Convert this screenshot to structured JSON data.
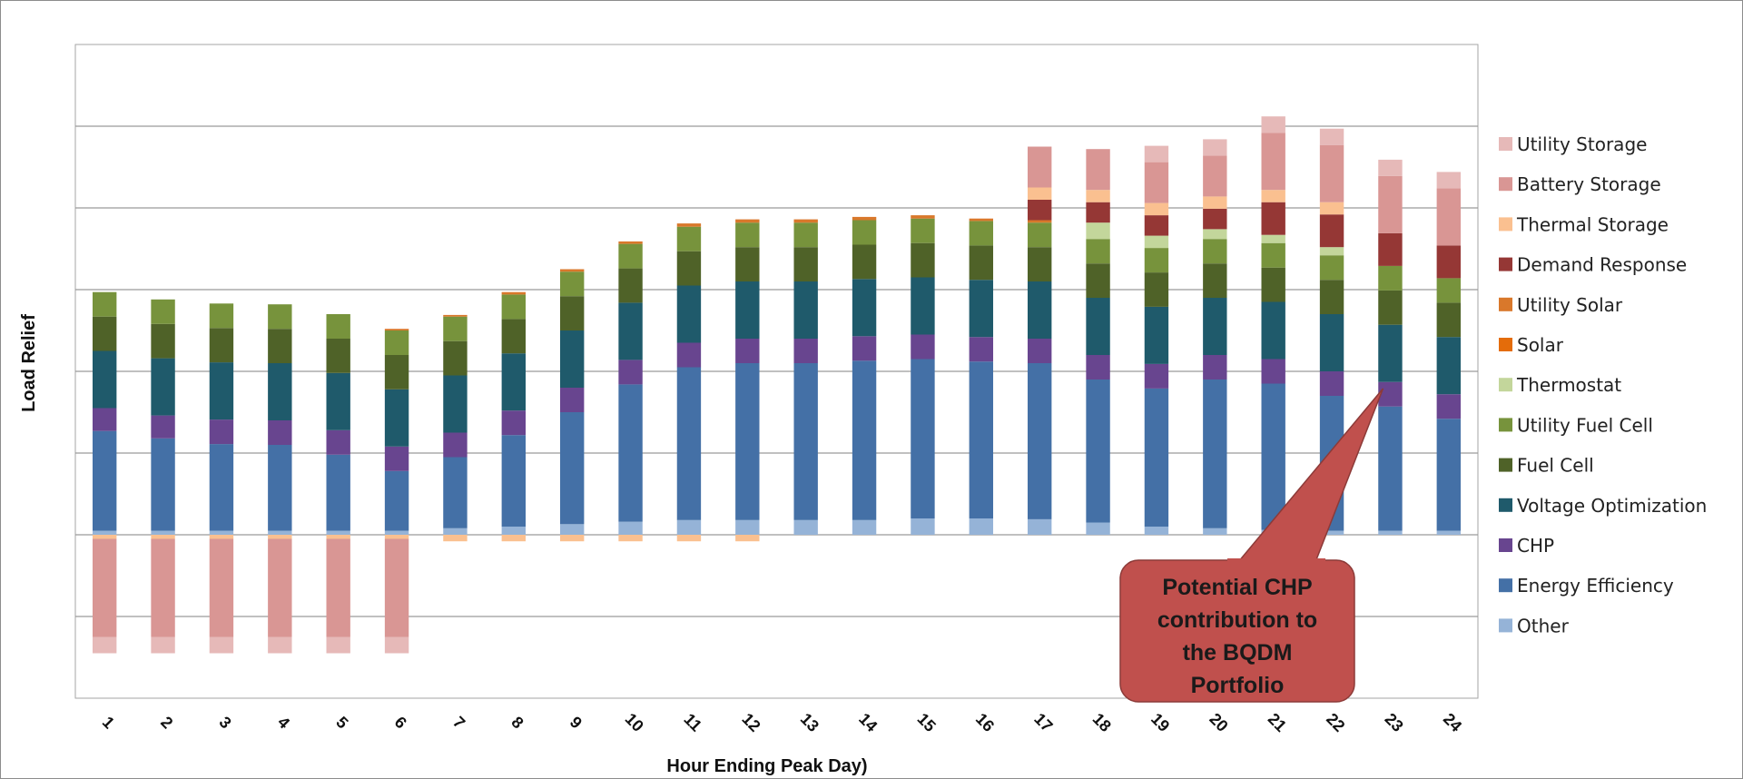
{
  "chart_data": {
    "type": "bar",
    "stacked": true,
    "title": "",
    "xlabel": "Hour Ending Peak Day)",
    "ylabel": "Load Relief",
    "y_tick_labels_shown": false,
    "ylim": [
      -2,
      6
    ],
    "grid": true,
    "legend_position": "right",
    "categories": [
      "1",
      "2",
      "3",
      "4",
      "5",
      "6",
      "7",
      "8",
      "9",
      "10",
      "11",
      "12",
      "13",
      "14",
      "15",
      "16",
      "17",
      "18",
      "19",
      "20",
      "21",
      "22",
      "23",
      "24"
    ],
    "series": [
      {
        "name": "Other",
        "color": "#95b3d7",
        "values": [
          0.05,
          0.05,
          0.05,
          0.05,
          0.05,
          0.05,
          0.08,
          0.1,
          0.13,
          0.16,
          0.18,
          0.18,
          0.18,
          0.18,
          0.2,
          0.2,
          0.19,
          0.15,
          0.1,
          0.08,
          0.06,
          0.05,
          0.05,
          0.05
        ]
      },
      {
        "name": "Energy Efficiency",
        "color": "#4470a6",
        "values": [
          1.22,
          1.13,
          1.06,
          1.05,
          0.93,
          0.73,
          0.87,
          1.12,
          1.37,
          1.68,
          1.87,
          1.92,
          1.92,
          1.95,
          1.95,
          1.92,
          1.91,
          1.75,
          1.69,
          1.82,
          1.79,
          1.65,
          1.52,
          1.37
        ]
      },
      {
        "name": "CHP",
        "color": "#68458f",
        "values": [
          0.28,
          0.28,
          0.3,
          0.3,
          0.3,
          0.3,
          0.3,
          0.3,
          0.3,
          0.3,
          0.3,
          0.3,
          0.3,
          0.3,
          0.3,
          0.3,
          0.3,
          0.3,
          0.3,
          0.3,
          0.3,
          0.3,
          0.3,
          0.3
        ]
      },
      {
        "name": "Voltage Optimization",
        "color": "#1f5a6b",
        "values": [
          0.7,
          0.7,
          0.7,
          0.7,
          0.7,
          0.7,
          0.7,
          0.7,
          0.7,
          0.7,
          0.7,
          0.7,
          0.7,
          0.7,
          0.7,
          0.7,
          0.7,
          0.7,
          0.7,
          0.7,
          0.7,
          0.7,
          0.7,
          0.7
        ]
      },
      {
        "name": "Fuel Cell",
        "color": "#4f6228",
        "values": [
          0.42,
          0.42,
          0.42,
          0.42,
          0.42,
          0.42,
          0.42,
          0.42,
          0.42,
          0.42,
          0.42,
          0.42,
          0.42,
          0.42,
          0.42,
          0.42,
          0.42,
          0.42,
          0.42,
          0.42,
          0.42,
          0.42,
          0.42,
          0.42
        ]
      },
      {
        "name": "Utility Fuel Cell",
        "color": "#77933c",
        "values": [
          0.3,
          0.3,
          0.3,
          0.3,
          0.3,
          0.3,
          0.3,
          0.3,
          0.3,
          0.3,
          0.3,
          0.3,
          0.3,
          0.3,
          0.3,
          0.3,
          0.3,
          0.3,
          0.3,
          0.3,
          0.3,
          0.3,
          0.3,
          0.3
        ]
      },
      {
        "name": "Thermostat",
        "color": "#c3d69b",
        "values": [
          0,
          0,
          0,
          0,
          0,
          0,
          0,
          0,
          0,
          0,
          0,
          0,
          0,
          0,
          0,
          0,
          0,
          0.2,
          0.15,
          0.12,
          0.1,
          0.1,
          0,
          0
        ]
      },
      {
        "name": "Solar",
        "color": "#e46c0a",
        "values": [
          0,
          0,
          0,
          0,
          0,
          0,
          0,
          0,
          0,
          0,
          0,
          0,
          0,
          0,
          0,
          0,
          0,
          0,
          0,
          0,
          0,
          0,
          0,
          0
        ]
      },
      {
        "name": "Utility Solar",
        "color": "#d9782b",
        "values": [
          0,
          0,
          0,
          0,
          0,
          0.02,
          0.02,
          0.03,
          0.03,
          0.03,
          0.04,
          0.04,
          0.04,
          0.04,
          0.04,
          0.03,
          0.03,
          0,
          0,
          0,
          0,
          0,
          0,
          0
        ]
      },
      {
        "name": "Demand Response",
        "color": "#953735",
        "values": [
          0,
          0,
          0,
          0,
          0,
          0,
          0,
          0,
          0,
          0,
          0,
          0,
          0,
          0,
          0,
          0,
          0.25,
          0.25,
          0.25,
          0.25,
          0.4,
          0.4,
          0.4,
          0.4
        ]
      },
      {
        "name": "Thermal Storage",
        "color": "#fac090",
        "values": [
          -0.05,
          -0.05,
          -0.05,
          -0.05,
          -0.05,
          -0.05,
          -0.08,
          -0.08,
          -0.08,
          -0.08,
          -0.08,
          -0.08,
          0,
          0,
          0,
          0,
          0.15,
          0.15,
          0.15,
          0.15,
          0.15,
          0.15,
          0,
          0
        ]
      },
      {
        "name": "Battery Storage",
        "color": "#d99694",
        "values": [
          -1.2,
          -1.2,
          -1.2,
          -1.2,
          -1.2,
          -1.2,
          0,
          0,
          0,
          0,
          0,
          0,
          0,
          0,
          0,
          0,
          0.5,
          0.5,
          0.5,
          0.5,
          0.7,
          0.7,
          0.7,
          0.7
        ]
      },
      {
        "name": "Utility Storage",
        "color": "#e6b9b8",
        "values": [
          -0.2,
          -0.2,
          -0.2,
          -0.2,
          -0.2,
          -0.2,
          0,
          0,
          0,
          0,
          0,
          0,
          0,
          0,
          0,
          0,
          0,
          0,
          0.2,
          0.2,
          0.2,
          0.2,
          0.2,
          0.2
        ]
      }
    ],
    "legend_order": [
      "Utility Storage",
      "Battery Storage",
      "Thermal Storage",
      "Demand Response",
      "Utility Solar",
      "Solar",
      "Thermostat",
      "Utility Fuel Cell",
      "Fuel Cell",
      "Voltage Optimization",
      "CHP",
      "Energy Efficiency",
      "Other"
    ],
    "annotation": {
      "lines": [
        "Potential CHP",
        "contribution to",
        "the BQDM",
        "Portfolio"
      ],
      "points_to_category": "23",
      "fill": "#c0504d"
    }
  }
}
